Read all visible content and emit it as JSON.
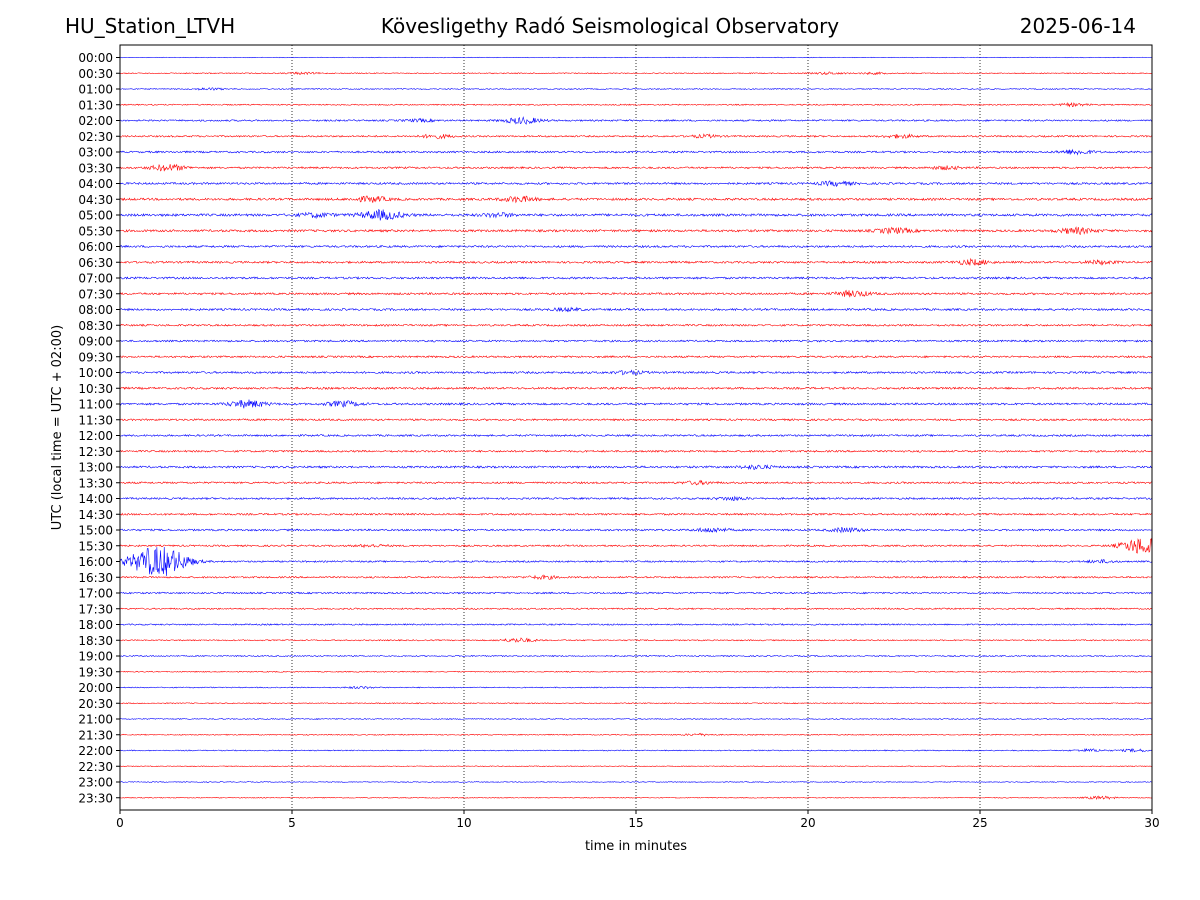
{
  "header": {
    "station": "HU_Station_LTVH",
    "observatory": "Kövesligethy Radó Seismological Observatory",
    "date": "2025-06-14"
  },
  "chart_data": {
    "type": "line",
    "title": "Kövesligethy Radó Seismological Observatory",
    "xlabel": "time in minutes",
    "ylabel": "UTC (local time = UTC + 02:00)",
    "xlim": [
      0,
      30
    ],
    "xticks": [
      0,
      5,
      10,
      15,
      20,
      25,
      30
    ],
    "vertical_grid_minutes": [
      5,
      10,
      15,
      20,
      25
    ],
    "grid": "vertical dotted lines every 5 minutes",
    "series_colors": [
      "#0000ff",
      "#ff0000"
    ],
    "color_rule": "alternating rows: full hours blue, half hours red",
    "rows": [
      "00:00",
      "00:30",
      "01:00",
      "01:30",
      "02:00",
      "02:30",
      "03:00",
      "03:30",
      "04:00",
      "04:30",
      "05:00",
      "05:30",
      "06:00",
      "06:30",
      "07:00",
      "07:30",
      "08:00",
      "08:30",
      "09:00",
      "09:30",
      "10:00",
      "10:30",
      "11:00",
      "11:30",
      "12:00",
      "12:30",
      "13:00",
      "13:30",
      "14:00",
      "14:30",
      "15:00",
      "15:30",
      "16:00",
      "16:30",
      "17:00",
      "17:30",
      "18:00",
      "18:30",
      "19:00",
      "19:30",
      "20:00",
      "20:30",
      "21:00",
      "21:30",
      "22:00",
      "22:30",
      "23:00",
      "23:30"
    ],
    "noise_levels": [
      0.3,
      0.5,
      0.5,
      0.6,
      0.8,
      0.8,
      0.9,
      0.9,
      1.0,
      1.1,
      1.2,
      1.1,
      1.0,
      1.0,
      1.0,
      1.0,
      1.0,
      0.9,
      0.9,
      0.9,
      1.0,
      1.0,
      1.0,
      0.9,
      0.9,
      0.9,
      1.0,
      0.9,
      0.9,
      0.9,
      0.9,
      0.8,
      0.8,
      0.8,
      0.8,
      0.7,
      0.7,
      0.6,
      0.6,
      0.5,
      0.5,
      0.5,
      0.5,
      0.5,
      0.5,
      0.4,
      0.4,
      0.4
    ],
    "events": [
      {
        "row": "00:30",
        "t": 5.3,
        "amp": 0.9
      },
      {
        "row": "00:30",
        "t": 20.6,
        "amp": 1.0
      },
      {
        "row": "00:30",
        "t": 21.9,
        "amp": 0.8
      },
      {
        "row": "01:00",
        "t": 2.6,
        "amp": 1.0
      },
      {
        "row": "01:30",
        "t": 27.7,
        "amp": 1.3
      },
      {
        "row": "02:00",
        "t": 8.7,
        "amp": 1.2
      },
      {
        "row": "02:00",
        "t": 11.7,
        "amp": 3.0
      },
      {
        "row": "02:30",
        "t": 9.2,
        "amp": 1.8
      },
      {
        "row": "02:30",
        "t": 17.0,
        "amp": 1.3
      },
      {
        "row": "02:30",
        "t": 22.7,
        "amp": 1.6
      },
      {
        "row": "03:00",
        "t": 27.8,
        "amp": 2.2
      },
      {
        "row": "03:30",
        "t": 1.4,
        "amp": 3.0
      },
      {
        "row": "03:30",
        "t": 24.0,
        "amp": 1.5
      },
      {
        "row": "04:00",
        "t": 20.8,
        "amp": 2.0
      },
      {
        "row": "04:30",
        "t": 7.3,
        "amp": 2.5
      },
      {
        "row": "04:30",
        "t": 11.6,
        "amp": 2.5
      },
      {
        "row": "05:00",
        "t": 5.7,
        "amp": 2.0
      },
      {
        "row": "05:00",
        "t": 7.6,
        "amp": 4.5
      },
      {
        "row": "05:00",
        "t": 11.0,
        "amp": 1.8
      },
      {
        "row": "05:30",
        "t": 22.5,
        "amp": 2.5
      },
      {
        "row": "05:30",
        "t": 27.8,
        "amp": 2.8
      },
      {
        "row": "06:30",
        "t": 24.8,
        "amp": 2.5
      },
      {
        "row": "06:30",
        "t": 28.5,
        "amp": 1.6
      },
      {
        "row": "07:30",
        "t": 21.3,
        "amp": 2.8
      },
      {
        "row": "08:00",
        "t": 13.0,
        "amp": 1.3
      },
      {
        "row": "10:00",
        "t": 14.8,
        "amp": 1.5
      },
      {
        "row": "11:00",
        "t": 3.7,
        "amp": 3.5
      },
      {
        "row": "11:00",
        "t": 6.5,
        "amp": 2.5
      },
      {
        "row": "13:00",
        "t": 18.5,
        "amp": 1.8
      },
      {
        "row": "13:30",
        "t": 16.8,
        "amp": 1.5
      },
      {
        "row": "14:00",
        "t": 17.8,
        "amp": 1.5
      },
      {
        "row": "15:00",
        "t": 17.2,
        "amp": 2.0
      },
      {
        "row": "15:00",
        "t": 21.1,
        "amp": 2.0
      },
      {
        "row": "15:30",
        "t": 7.3,
        "amp": 1.2
      },
      {
        "row": "15:30",
        "t": 29.6,
        "amp": 3.0
      },
      {
        "row": "15:30",
        "t": 29.9,
        "amp": 6.0
      },
      {
        "row": "16:00",
        "t": 0.9,
        "amp": 8.0
      },
      {
        "row": "16:00",
        "t": 1.2,
        "amp": 7.0
      },
      {
        "row": "16:00",
        "t": 1.7,
        "amp": 2.5
      },
      {
        "row": "16:00",
        "t": 28.5,
        "amp": 1.3
      },
      {
        "row": "16:30",
        "t": 12.3,
        "amp": 1.5
      },
      {
        "row": "18:30",
        "t": 11.6,
        "amp": 2.0
      },
      {
        "row": "20:00",
        "t": 7.0,
        "amp": 1.0
      },
      {
        "row": "21:30",
        "t": 16.8,
        "amp": 1.0
      },
      {
        "row": "22:00",
        "t": 28.2,
        "amp": 1.3
      },
      {
        "row": "22:00",
        "t": 29.5,
        "amp": 1.2
      },
      {
        "row": "23:30",
        "t": 28.5,
        "amp": 1.5
      }
    ]
  }
}
